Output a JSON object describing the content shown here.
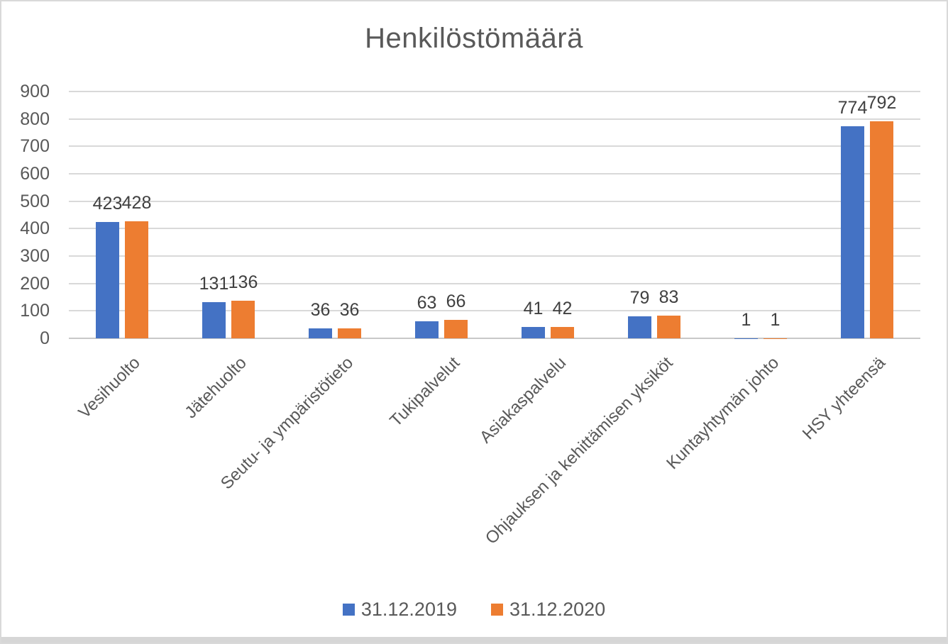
{
  "chart_data": {
    "type": "bar",
    "title": "Henkilöstömäärä",
    "categories": [
      "Vesihuolto",
      "Jätehuolto",
      "Seutu- ja ympäristötieto",
      "Tukipalvelut",
      "Asiakaspalvelu",
      "Ohjauksen ja kehittämisen yksiköt",
      "Kuntayhtymän johto",
      "HSY yhteensä"
    ],
    "series": [
      {
        "name": "31.12.2019",
        "color": "#4472c4",
        "values": [
          423,
          131,
          36,
          63,
          41,
          79,
          1,
          774
        ]
      },
      {
        "name": "31.12.2020",
        "color": "#ed7d31",
        "values": [
          428,
          136,
          36,
          66,
          42,
          83,
          1,
          792
        ]
      }
    ],
    "ylim": [
      0,
      900
    ],
    "yticks": [
      0,
      100,
      200,
      300,
      400,
      500,
      600,
      700,
      800,
      900
    ],
    "grid": true,
    "legend_position": "bottom",
    "data_labels": true
  },
  "styles": {
    "title_color": "#595959",
    "axis_label_color": "#595959",
    "data_label_color": "#404040",
    "gridline_color": "#d9d9d9",
    "page_border_color": "#d9d9d9"
  }
}
